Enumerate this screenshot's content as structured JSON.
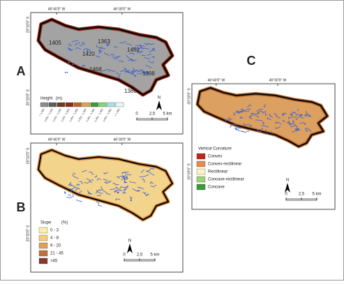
{
  "panels": [
    {
      "letter": "A",
      "coords": {
        "top": [
          "46°40'0\" W",
          "46°30'0\" W"
        ],
        "left": [
          "20°10'0\" S",
          "20°20'0\" S"
        ]
      },
      "spot_heights": [
        "1405",
        "1363",
        "1420",
        "1453",
        "1468",
        "1398",
        "1388"
      ],
      "legend": {
        "title": "Height",
        "unit": "(m)",
        "items": [
          {
            "label": "< 1,050",
            "color": "#8c8c8c"
          },
          {
            "label": "1,051 - 1,100",
            "color": "#5e5e5e"
          },
          {
            "label": "1,101 - 1,150",
            "color": "#6b3a1f"
          },
          {
            "label": "1,151 - 1,200",
            "color": "#8b2b1a"
          },
          {
            "label": "1,201 - 1,250",
            "color": "#b5652b"
          },
          {
            "label": "1,251 - 1,300",
            "color": "#d9a35a"
          },
          {
            "label": "1,301 - 1,350",
            "color": "#3c9b3c"
          },
          {
            "label": "1,351 - 1,400",
            "color": "#8bd17c"
          },
          {
            "label": "1,401 - 1,450",
            "color": "#a9e0e6"
          },
          {
            "label": "> 1,450",
            "color": "#e8f6f8"
          }
        ]
      },
      "scale": {
        "ticks": [
          "0",
          "2,5",
          "5 km"
        ],
        "north": "N"
      }
    },
    {
      "letter": "B",
      "coords": {
        "top": [
          "46°40'0\" W",
          "46°30'0\" W"
        ],
        "left": [
          "20°10'0\" S",
          "20°20'0\" S"
        ]
      },
      "legend": {
        "title": "Slope",
        "unit": "(%)",
        "items": [
          {
            "label": "0 - 3",
            "color": "#fbeea8"
          },
          {
            "label": "4 - 8",
            "color": "#f5cd7a"
          },
          {
            "label": "9 - 20",
            "color": "#e0a050"
          },
          {
            "label": "21 - 45",
            "color": "#c2703c"
          },
          {
            "label": ">45",
            "color": "#8a3a2a"
          }
        ]
      },
      "scale": {
        "ticks": [
          "0",
          "2,5",
          "5 km"
        ],
        "north": "N"
      }
    },
    {
      "letter": "C",
      "coords": {
        "top": [
          "46°40'0\" W",
          "46°30'0\" W"
        ],
        "left": [
          "20°10'0\" S",
          "20°20'0\" S"
        ]
      },
      "legend": {
        "title": "Vertical Curvature",
        "items": [
          {
            "label": "Convex",
            "color": "#c0241c"
          },
          {
            "label": "Convex-rectilinear",
            "color": "#e58a4e"
          },
          {
            "label": "Rectilinear",
            "color": "#fbf3c4"
          },
          {
            "label": "Concave-rectilinear",
            "color": "#9fd27a"
          },
          {
            "label": "Concave",
            "color": "#3a9a3a"
          }
        ]
      },
      "scale": {
        "ticks": [
          "0",
          "2,5",
          "5 km"
        ],
        "north": "N"
      }
    }
  ]
}
